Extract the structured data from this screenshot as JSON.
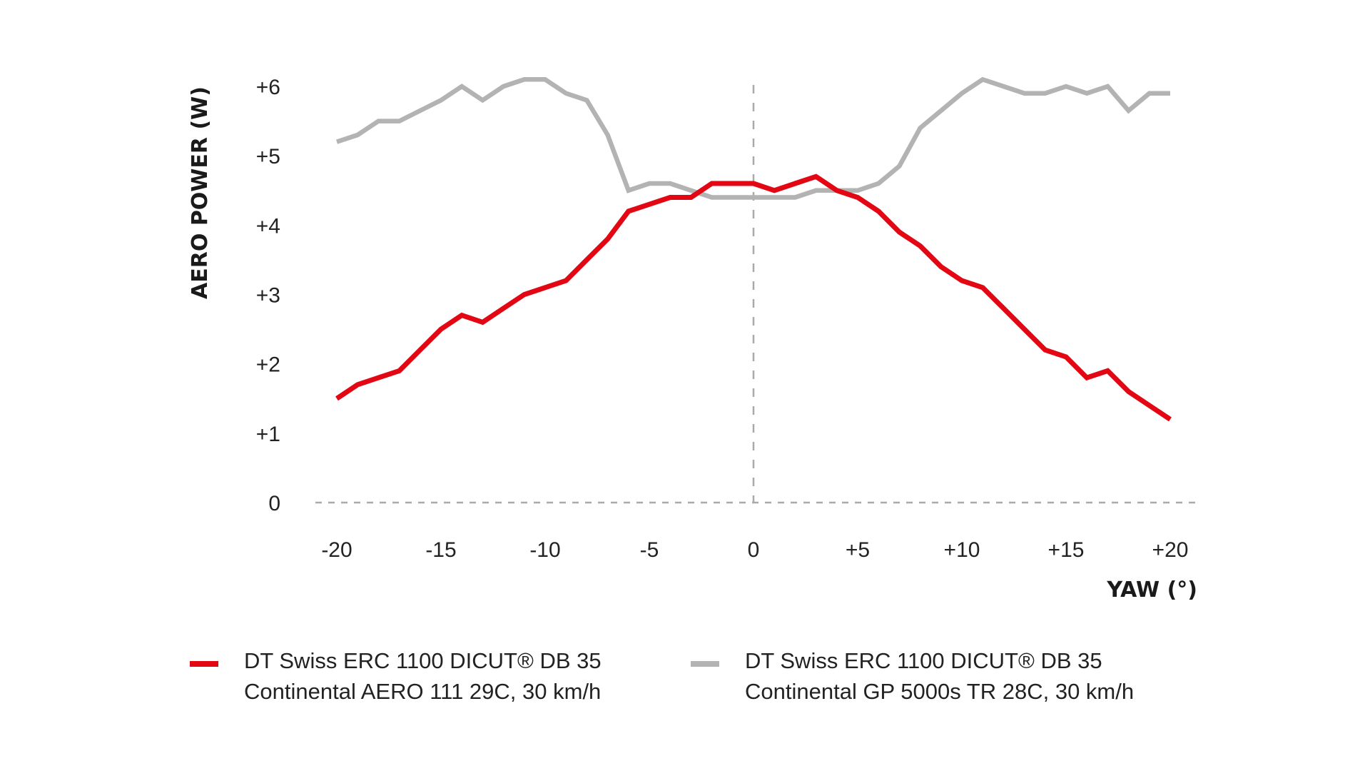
{
  "chart_data": {
    "type": "line",
    "title": "",
    "xlabel": "YAW (°)",
    "ylabel": "AERO POWER (W)",
    "xlim": [
      -20,
      20
    ],
    "ylim": [
      0,
      6
    ],
    "x_ticks": [
      -20,
      -15,
      -10,
      -5,
      0,
      5,
      10,
      15,
      20
    ],
    "x_tick_labels": [
      "-20",
      "-15",
      "-10",
      "-5",
      "0",
      "+5",
      "+10",
      "+15",
      "+20"
    ],
    "y_ticks": [
      0,
      1,
      2,
      3,
      4,
      5,
      6
    ],
    "y_tick_labels": [
      "0",
      "+1",
      "+2",
      "+3",
      "+4",
      "+5",
      "+6"
    ],
    "grid": false,
    "reference_lines": [
      {
        "axis": "y",
        "value": 0,
        "style": "dashed"
      },
      {
        "axis": "x",
        "value": 0,
        "style": "dashed"
      }
    ],
    "legend_position": "bottom",
    "x": [
      -20,
      -19,
      -18,
      -17,
      -16,
      -15,
      -14,
      -13,
      -12,
      -11,
      -10,
      -9,
      -8,
      -7,
      -6,
      -5,
      -4,
      -3,
      -2,
      -1,
      0,
      1,
      2,
      3,
      4,
      5,
      6,
      7,
      8,
      9,
      10,
      11,
      12,
      13,
      14,
      15,
      16,
      17,
      18,
      19,
      20
    ],
    "series": [
      {
        "name": "DT Swiss ERC 1100 DICUT® DB 35 Continental AERO 111 29C, 30 km/h",
        "legend_lines": [
          "DT Swiss ERC 1100 DICUT® DB 35",
          "Continental AERO 111 29C, 30 km/h"
        ],
        "color": "#e30613",
        "values": [
          1.5,
          1.7,
          1.8,
          1.9,
          2.2,
          2.5,
          2.7,
          2.6,
          2.8,
          3.0,
          3.1,
          3.2,
          3.5,
          3.8,
          4.2,
          4.3,
          4.4,
          4.4,
          4.6,
          4.6,
          4.6,
          4.5,
          4.6,
          4.7,
          4.5,
          4.4,
          4.2,
          3.9,
          3.7,
          3.4,
          3.2,
          3.1,
          2.8,
          2.5,
          2.2,
          2.1,
          1.8,
          1.9,
          1.6,
          1.4,
          1.2
        ]
      },
      {
        "name": "DT Swiss ERC 1100 DICUT® DB 35 Continental GP 5000s TR 28C, 30 km/h",
        "legend_lines": [
          "DT Swiss ERC 1100 DICUT® DB 35",
          "Continental GP 5000s TR 28C, 30 km/h"
        ],
        "color": "#b3b3b3",
        "values": [
          5.2,
          5.3,
          5.5,
          5.5,
          5.65,
          5.8,
          6.0,
          5.8,
          6.0,
          6.1,
          6.1,
          5.9,
          5.8,
          5.3,
          4.5,
          4.6,
          4.6,
          4.5,
          4.4,
          4.4,
          4.4,
          4.4,
          4.4,
          4.5,
          4.5,
          4.5,
          4.6,
          4.85,
          5.4,
          5.65,
          5.9,
          6.1,
          6.0,
          5.9,
          5.9,
          6.0,
          5.9,
          6.0,
          5.65,
          5.9,
          5.9
        ]
      }
    ]
  },
  "colors": {
    "axis_dash": "#aaaaaa",
    "text": "#222222"
  }
}
